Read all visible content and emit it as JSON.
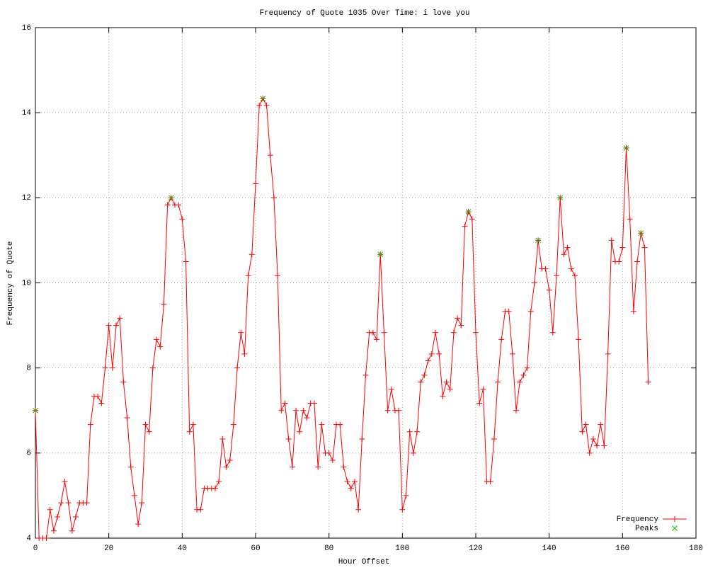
{
  "chart_data": {
    "type": "line",
    "title": "Frequency of Quote 1035 Over Time: i love you",
    "x_label": "Hour Offset",
    "y_label": "Frequency of Quote",
    "xlim": [
      0,
      180
    ],
    "ylim": [
      4,
      16
    ],
    "xticks": [
      0,
      20,
      40,
      60,
      80,
      100,
      120,
      140,
      160,
      180
    ],
    "yticks": [
      4,
      6,
      8,
      10,
      12,
      14,
      16
    ],
    "grid": true,
    "legend": "lower right",
    "series": [
      {
        "name": "Frequency",
        "color": "#ff0000",
        "marker": "plus",
        "x": [
          0,
          1,
          2,
          3,
          4,
          5,
          6,
          7,
          8,
          9,
          10,
          11,
          12,
          13,
          14,
          15,
          16,
          17,
          18,
          19,
          20,
          21,
          22,
          23,
          24,
          25,
          26,
          27,
          28,
          29,
          30,
          31,
          32,
          33,
          34,
          35,
          36,
          37,
          38,
          39,
          40,
          41,
          42,
          43,
          44,
          45,
          46,
          47,
          48,
          49,
          50,
          51,
          52,
          53,
          54,
          55,
          56,
          57,
          58,
          59,
          60,
          61,
          62,
          63,
          64,
          65,
          66,
          67,
          68,
          69,
          70,
          71,
          72,
          73,
          74,
          75,
          76,
          77,
          78,
          79,
          80,
          81,
          82,
          83,
          84,
          85,
          86,
          87,
          88,
          89,
          90,
          91,
          92,
          93,
          94,
          95,
          96,
          97,
          98,
          99,
          100,
          101,
          102,
          103,
          104,
          105,
          106,
          107,
          108,
          109,
          110,
          111,
          112,
          113,
          114,
          115,
          116,
          117,
          118,
          119,
          120,
          121,
          122,
          123,
          124,
          125,
          126,
          127,
          128,
          129,
          130,
          131,
          132,
          133,
          134,
          135,
          136,
          137,
          138,
          139,
          140,
          141,
          142,
          143,
          144,
          145,
          146,
          147,
          148,
          149,
          150,
          151,
          152,
          153,
          154,
          155,
          156,
          157,
          158,
          159,
          160,
          161,
          162,
          163,
          164,
          165,
          166,
          167
        ],
        "values": [
          7,
          4,
          4,
          4,
          4.67,
          4.17,
          4.5,
          4.83,
          5.33,
          4.83,
          4.17,
          4.5,
          4.83,
          4.83,
          4.83,
          6.67,
          7.33,
          7.33,
          7.17,
          8,
          9,
          8,
          9,
          9.17,
          7.67,
          6.83,
          5.67,
          5,
          4.33,
          4.83,
          6.67,
          6.5,
          8,
          8.67,
          8.5,
          9.5,
          11.83,
          12,
          11.83,
          11.83,
          11.5,
          10.5,
          6.5,
          6.67,
          4.67,
          4.67,
          5.17,
          5.17,
          5.17,
          5.17,
          5.33,
          6.33,
          5.67,
          5.83,
          6.67,
          8,
          8.83,
          8.33,
          10.17,
          10.67,
          12.33,
          14.17,
          14.33,
          14.17,
          13,
          12,
          10.17,
          7,
          7.17,
          6.33,
          5.67,
          7,
          6.5,
          7,
          6.83,
          7.17,
          7.17,
          5.67,
          6.67,
          6,
          6,
          5.83,
          6.67,
          6.67,
          5.67,
          5.33,
          5.17,
          5.33,
          4.67,
          6.33,
          7.83,
          8.83,
          8.83,
          8.67,
          10.67,
          8.83,
          7,
          7.5,
          7,
          7,
          4.67,
          5,
          6.5,
          6,
          6.5,
          7.67,
          7.83,
          8.17,
          8.33,
          8.83,
          8.33,
          7.33,
          7.67,
          7.5,
          8.83,
          9.17,
          9,
          11.33,
          11.67,
          11.5,
          8.83,
          7.17,
          7.5,
          5.33,
          5.33,
          6.33,
          7.67,
          8.67,
          9.33,
          9.33,
          8.33,
          7,
          7.67,
          7.83,
          8,
          9.33,
          10,
          11,
          10.33,
          10.33,
          9.83,
          8.83,
          10.17,
          12,
          10.67,
          10.83,
          10.33,
          10.17,
          8.67,
          6.5,
          6.67,
          6,
          6.33,
          6.17,
          6.67,
          6.17,
          8.33,
          11,
          10.5,
          10.5,
          10.83,
          13.17,
          11.5,
          9.33,
          10.5,
          11.17,
          10.83,
          7.67
        ]
      },
      {
        "name": "Peaks",
        "color": "#00c000",
        "marker": "cross",
        "x": [
          0,
          37,
          62,
          94,
          118,
          137,
          143,
          161,
          165
        ],
        "values": [
          7,
          12,
          14.33,
          10.67,
          11.67,
          11,
          12,
          13.17,
          11.17
        ]
      }
    ]
  }
}
